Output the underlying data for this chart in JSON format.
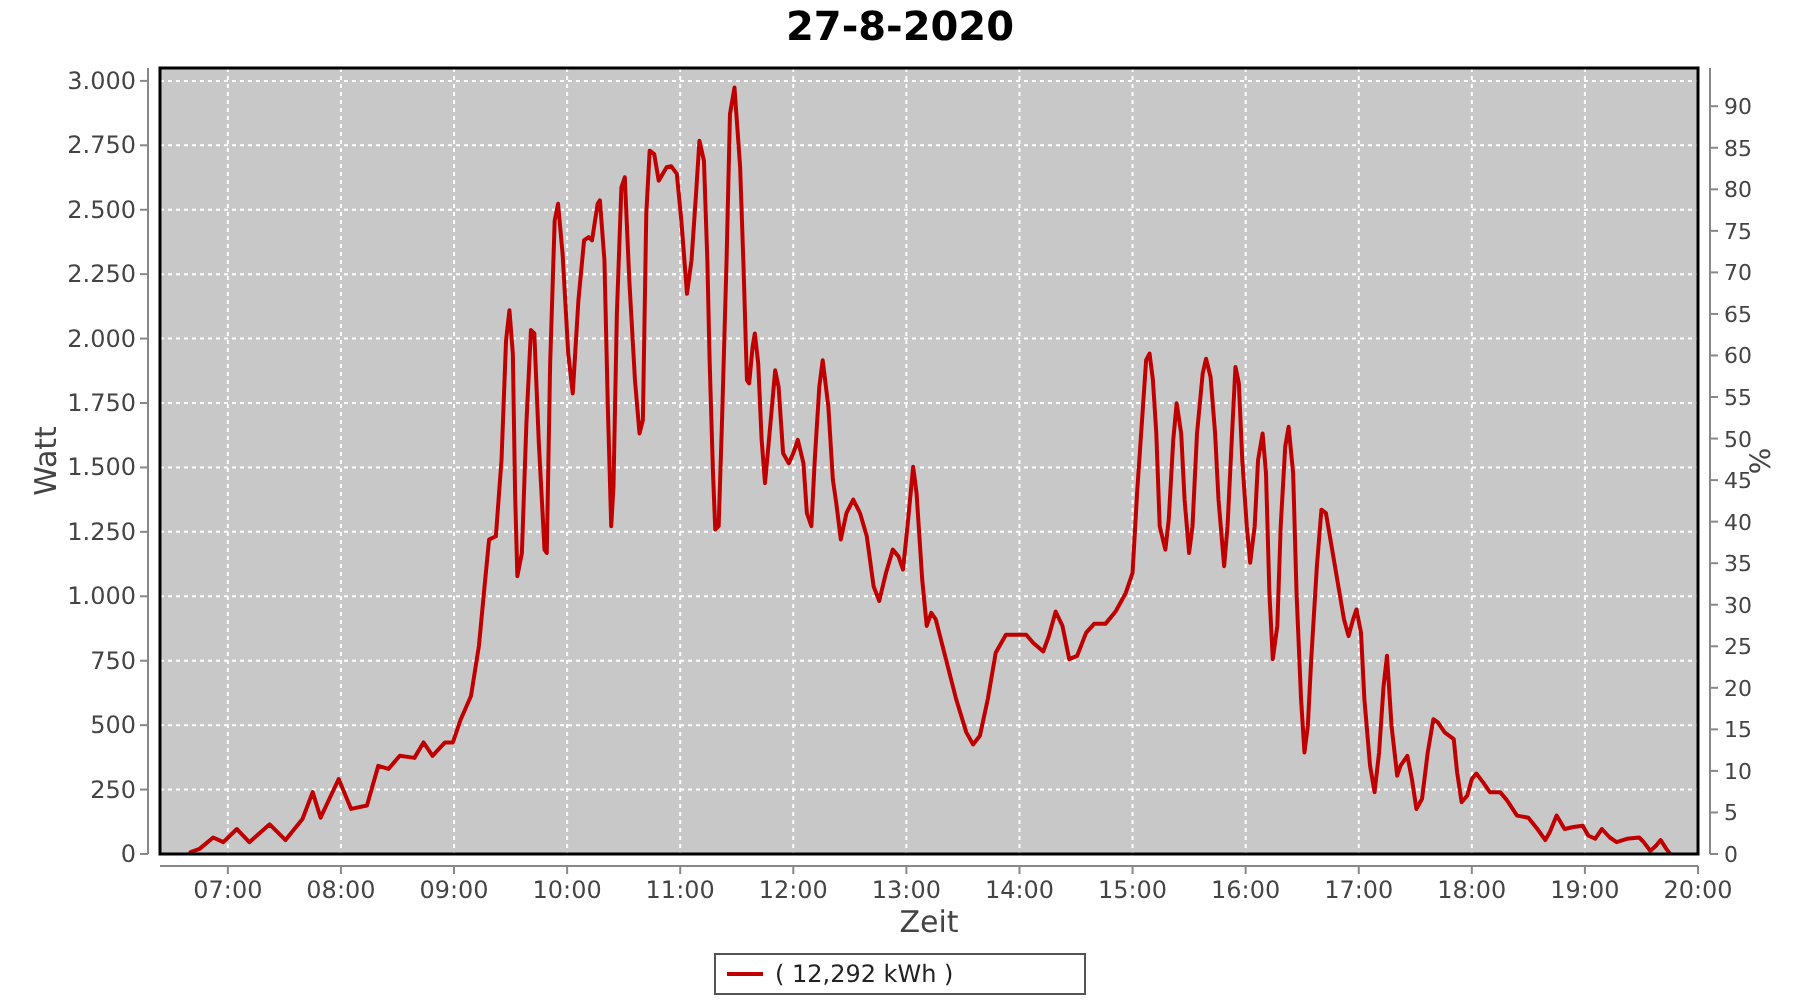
{
  "chart_data": {
    "type": "line",
    "title": "27-8-2020",
    "xlabel": "Zeit",
    "ylabel": "Watt",
    "y2label": "%",
    "xlim": [
      6.4,
      20
    ],
    "xticks": [
      {
        "value": 7,
        "label": "07:00"
      },
      {
        "value": 8,
        "label": "08:00"
      },
      {
        "value": 9,
        "label": "09:00"
      },
      {
        "value": 10,
        "label": "10:00"
      },
      {
        "value": 11,
        "label": "11:00"
      },
      {
        "value": 12,
        "label": "12:00"
      },
      {
        "value": 13,
        "label": "13:00"
      },
      {
        "value": 14,
        "label": "14:00"
      },
      {
        "value": 15,
        "label": "15:00"
      },
      {
        "value": 16,
        "label": "16:00"
      },
      {
        "value": 17,
        "label": "17:00"
      },
      {
        "value": 18,
        "label": "18:00"
      },
      {
        "value": 19,
        "label": "19:00"
      },
      {
        "value": 20,
        "label": "20:00"
      }
    ],
    "ylim": [
      0,
      3050
    ],
    "yticks": [
      0,
      250,
      500,
      750,
      {
        "value": 1000,
        "label": "1.000"
      },
      {
        "value": 1250,
        "label": "1.250"
      },
      {
        "value": 1500,
        "label": "1.500"
      },
      {
        "value": 1750,
        "label": "1.750"
      },
      {
        "value": 2000,
        "label": "2.000"
      },
      {
        "value": 2250,
        "label": "2.250"
      },
      {
        "value": 2500,
        "label": "2.500"
      },
      {
        "value": 2750,
        "label": "2.750"
      },
      {
        "value": 3000,
        "label": "3.000"
      }
    ],
    "y2lim": [
      0,
      94.6
    ],
    "y2ticks": [
      0,
      5,
      10,
      15,
      20,
      25,
      30,
      35,
      40,
      45,
      50,
      55,
      60,
      65,
      70,
      75,
      80,
      85,
      90
    ],
    "grid": true,
    "legend": "bottom",
    "x": [
      6.67,
      6.75,
      6.87,
      6.96,
      7.08,
      7.19,
      7.37,
      7.51,
      7.66,
      7.75,
      7.82,
      7.98,
      8.09,
      8.23,
      8.33,
      8.42,
      8.52,
      8.65,
      8.73,
      8.81,
      8.92,
      8.99,
      9.06,
      9.15,
      9.22,
      9.27,
      9.31,
      9.37,
      9.42,
      9.46,
      9.49,
      9.52,
      9.54,
      9.56,
      9.6,
      9.64,
      9.68,
      9.71,
      9.75,
      9.8,
      9.82,
      9.85,
      9.89,
      9.92,
      9.96,
      10.01,
      10.05,
      10.1,
      10.15,
      10.19,
      10.22,
      10.27,
      10.29,
      10.33,
      10.36,
      10.39,
      10.41,
      10.44,
      10.48,
      10.51,
      10.55,
      10.6,
      10.64,
      10.67,
      10.7,
      10.73,
      10.77,
      10.81,
      10.88,
      10.92,
      10.97,
      11.01,
      11.06,
      11.1,
      11.14,
      11.17,
      11.21,
      11.24,
      11.26,
      11.29,
      11.31,
      11.34,
      11.37,
      11.41,
      11.44,
      11.48,
      11.53,
      11.56,
      11.59,
      11.61,
      11.64,
      11.66,
      11.69,
      11.72,
      11.75,
      11.79,
      11.84,
      11.87,
      11.91,
      11.96,
      12,
      12.04,
      12.09,
      12.12,
      12.16,
      12.19,
      12.23,
      12.26,
      12.31,
      12.35,
      12.38,
      12.42,
      12.47,
      12.53,
      12.59,
      12.65,
      12.71,
      12.76,
      12.82,
      12.88,
      12.93,
      12.97,
      13.01,
      13.06,
      13.09,
      13.14,
      13.18,
      13.22,
      13.26,
      13.35,
      13.44,
      13.53,
      13.59,
      13.65,
      13.72,
      13.79,
      13.88,
      14.06,
      14.12,
      14.21,
      14.26,
      14.32,
      14.38,
      14.44,
      14.51,
      14.59,
      14.66,
      14.76,
      14.85,
      14.94,
      15,
      15.04,
      15.08,
      15.12,
      15.15,
      15.18,
      15.21,
      15.24,
      15.29,
      15.32,
      15.36,
      15.39,
      15.43,
      15.46,
      15.5,
      15.53,
      15.57,
      15.62,
      15.65,
      15.69,
      15.73,
      15.76,
      15.81,
      15.84,
      15.88,
      15.91,
      15.94,
      15.97,
      16.01,
      16.04,
      16.08,
      16.11,
      16.15,
      16.18,
      16.21,
      16.24,
      16.28,
      16.31,
      16.35,
      16.38,
      16.42,
      16.45,
      16.49,
      16.52,
      16.55,
      16.58,
      16.63,
      16.67,
      16.71,
      16.75,
      16.81,
      16.87,
      16.91,
      16.95,
      16.98,
      17.02,
      17.05,
      17.1,
      17.14,
      17.18,
      17.22,
      17.25,
      17.29,
      17.34,
      17.37,
      17.43,
      17.47,
      17.51,
      17.56,
      17.61,
      17.66,
      17.7,
      17.76,
      17.84,
      17.87,
      17.91,
      17.96,
      18,
      18.04,
      18.1,
      18.16,
      18.25,
      18.31,
      18.4,
      18.5,
      18.58,
      18.65,
      18.69,
      18.75,
      18.82,
      18.9,
      18.98,
      19.03,
      19.09,
      19.15,
      19.22,
      19.28,
      19.37,
      19.48,
      19.52,
      19.58,
      19.63,
      19.67,
      19.72,
      19.75
    ],
    "series": [
      {
        "name": "( 12,292 kWh )",
        "color": "#c00000",
        "values": [
          7,
          20,
          64,
          46,
          97,
          46,
          115,
          54,
          136,
          240,
          141,
          291,
          175,
          188,
          342,
          330,
          381,
          373,
          433,
          381,
          433,
          433,
          523,
          613,
          807,
          1039,
          1220,
          1233,
          1530,
          1994,
          2110,
          1942,
          1400,
          1078,
          1168,
          1671,
          2033,
          2020,
          1594,
          1181,
          1168,
          1903,
          2458,
          2523,
          2329,
          1942,
          1787,
          2149,
          2381,
          2394,
          2381,
          2523,
          2536,
          2304,
          1736,
          1272,
          1426,
          2097,
          2587,
          2626,
          2226,
          1839,
          1632,
          1684,
          2484,
          2729,
          2716,
          2613,
          2665,
          2669,
          2639,
          2458,
          2174,
          2304,
          2561,
          2768,
          2690,
          2304,
          1916,
          1478,
          1259,
          1272,
          1684,
          2304,
          2871,
          2974,
          2665,
          2278,
          1839,
          1826,
          1968,
          2020,
          1903,
          1607,
          1439,
          1632,
          1877,
          1813,
          1555,
          1516,
          1555,
          1607,
          1516,
          1323,
          1272,
          1529,
          1813,
          1916,
          1736,
          1452,
          1362,
          1220,
          1323,
          1375,
          1323,
          1233,
          1039,
          982,
          1091,
          1181,
          1155,
          1104,
          1272,
          1503,
          1400,
          1065,
          885,
          936,
          910,
          756,
          601,
          472,
          425,
          459,
          601,
          781,
          851,
          851,
          820,
          786,
          846,
          941,
          885,
          756,
          769,
          859,
          893,
          893,
          941,
          1013,
          1091,
          1400,
          1658,
          1916,
          1942,
          1839,
          1632,
          1272,
          1181,
          1297,
          1607,
          1749,
          1632,
          1375,
          1168,
          1272,
          1632,
          1864,
          1922,
          1851,
          1632,
          1375,
          1117,
          1272,
          1632,
          1890,
          1826,
          1529,
          1272,
          1130,
          1272,
          1529,
          1632,
          1478,
          1013,
          756,
          885,
          1272,
          1581,
          1658,
          1478,
          1013,
          601,
          394,
          498,
          756,
          1117,
          1336,
          1323,
          1220,
          1065,
          910,
          846,
          910,
          949,
          859,
          601,
          343,
          240,
          394,
          653,
          769,
          498,
          304,
          343,
          381,
          291,
          175,
          214,
          394,
          523,
          511,
          472,
          446,
          317,
          201,
          227,
          291,
          312,
          278,
          240,
          240,
          209,
          149,
          141,
          97,
          54,
          85,
          149,
          97,
          105,
          110,
          72,
          59,
          97,
          64,
          46,
          59,
          64,
          46,
          12,
          33,
          54,
          20,
          2
        ]
      }
    ]
  }
}
